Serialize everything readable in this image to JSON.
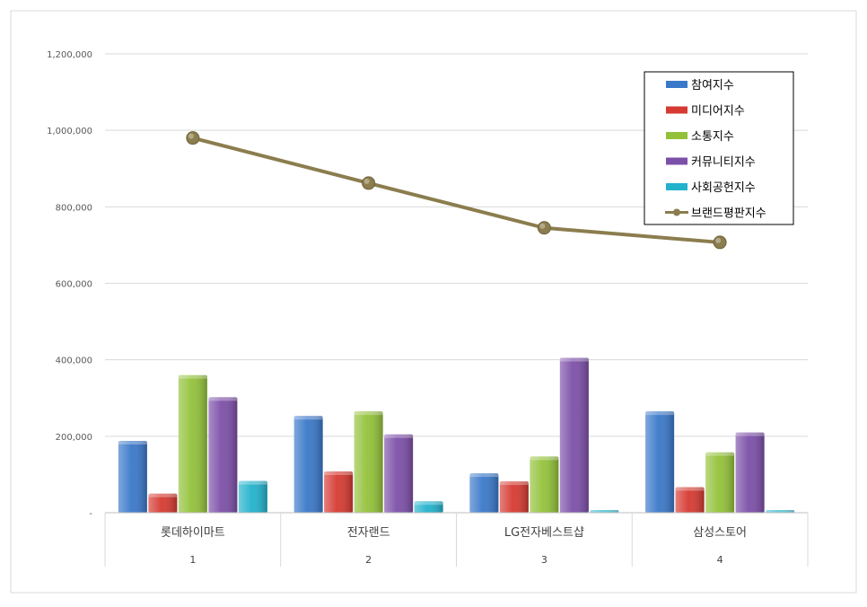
{
  "chart_data": {
    "type": "bar",
    "categories": [
      "롯데하이마트",
      "전자랜드",
      "LG전자베스트샵",
      "삼성스토어"
    ],
    "category_index_labels": [
      "1",
      "2",
      "3",
      "4"
    ],
    "ylim": [
      0,
      1200000
    ],
    "y_ticks": [
      0,
      200000,
      400000,
      600000,
      800000,
      1000000,
      1200000
    ],
    "y_tick_labels": [
      "-",
      "200,000",
      "400,000",
      "600,000",
      "800,000",
      "1,000,000",
      "1,200,000"
    ],
    "grid": true,
    "legend_position": "top-right",
    "series": [
      {
        "name": "참여지수",
        "type": "bar",
        "color": "#3a78c9",
        "values": [
          188000,
          253000,
          103000,
          265000
        ]
      },
      {
        "name": "미디어지수",
        "type": "bar",
        "color": "#d63a32",
        "values": [
          50000,
          108000,
          82000,
          67000
        ]
      },
      {
        "name": "소통지수",
        "type": "bar",
        "color": "#93c23a",
        "values": [
          360000,
          265000,
          147000,
          158000
        ]
      },
      {
        "name": "커뮤니티지수",
        "type": "bar",
        "color": "#7c4fa8",
        "values": [
          302000,
          205000,
          405000,
          210000
        ]
      },
      {
        "name": "사회공헌지수",
        "type": "bar",
        "color": "#22b2cc",
        "values": [
          83000,
          30000,
          7000,
          7000
        ]
      },
      {
        "name": "브랜드평판지수",
        "type": "line",
        "color": "#8b7d4e",
        "values": [
          980000,
          862000,
          745000,
          707000
        ]
      }
    ]
  }
}
